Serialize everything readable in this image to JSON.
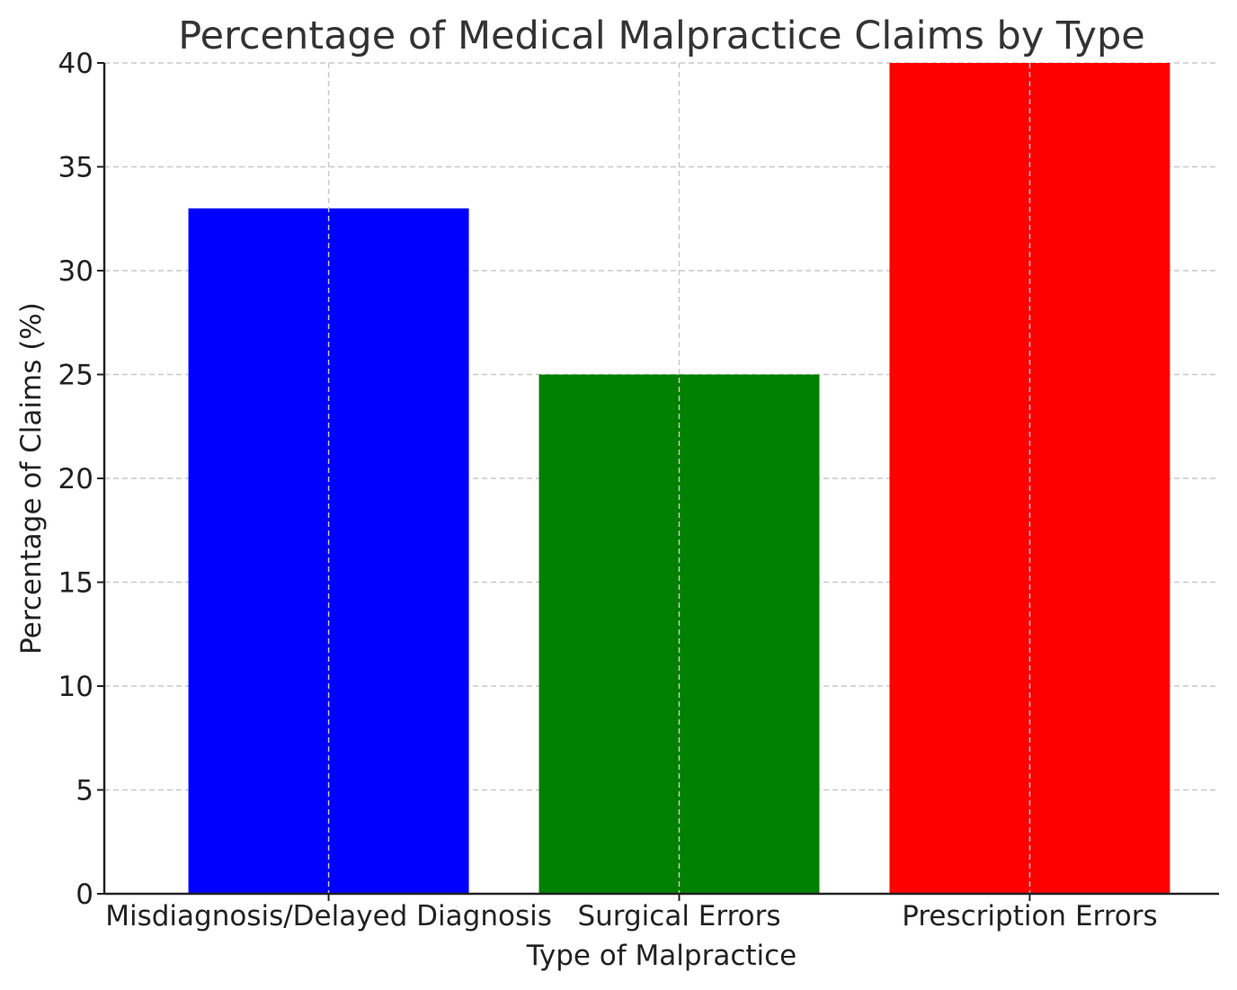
{
  "chart_data": {
    "type": "bar",
    "title": "Percentage of Medical Malpractice Claims by Type",
    "xlabel": "Type of Malpractice",
    "ylabel": "Percentage of Claims (%)",
    "categories": [
      "Misdiagnosis/Delayed Diagnosis",
      "Surgical Errors",
      "Prescription Errors"
    ],
    "values": [
      33,
      25,
      40
    ],
    "colors": [
      "#0000ff",
      "#008000",
      "#ff0000"
    ],
    "ylim": [
      0,
      40
    ],
    "yticks": [
      0,
      5,
      10,
      15,
      20,
      25,
      30,
      35,
      40
    ],
    "grid": true
  }
}
